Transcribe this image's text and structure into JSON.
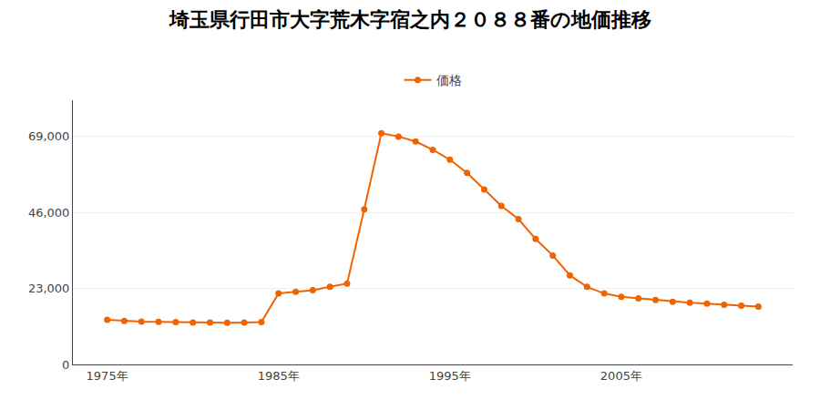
{
  "chart_data": {
    "type": "line",
    "title": "埼玉県行田市大字荒木字宿之内２０８８番の地価推移",
    "x": [
      1975,
      1976,
      1977,
      1978,
      1979,
      1980,
      1981,
      1982,
      1983,
      1984,
      1985,
      1986,
      1987,
      1988,
      1989,
      1990,
      1991,
      1992,
      1993,
      1994,
      1995,
      1996,
      1997,
      1998,
      1999,
      2000,
      2001,
      2002,
      2003,
      2004,
      2005,
      2006,
      2007,
      2008,
      2009,
      2010,
      2011,
      2012,
      2013
    ],
    "series": [
      {
        "name": "価格",
        "color": "#f06400",
        "marker": "circle",
        "line_style": "solid",
        "values": [
          13500,
          13200,
          13000,
          12900,
          12800,
          12700,
          12700,
          12600,
          12700,
          12800,
          21500,
          22000,
          22500,
          23500,
          24500,
          47000,
          70000,
          69000,
          67500,
          65000,
          62000,
          58000,
          53000,
          48000,
          44000,
          38000,
          33000,
          27000,
          23500,
          21500,
          20500,
          20000,
          19500,
          19000,
          18700,
          18400,
          18100,
          17800,
          17500
        ]
      }
    ],
    "xlim": [
      1973,
      2015
    ],
    "xticks": [
      {
        "value": 1975,
        "label": "1975年"
      },
      {
        "value": 1985,
        "label": "1985年"
      },
      {
        "value": 1995,
        "label": "1995年"
      },
      {
        "value": 2005,
        "label": "2005年"
      }
    ],
    "ylim": [
      0,
      80000
    ],
    "yticks": [
      0,
      {
        "value": 23000,
        "label": "23,000"
      },
      {
        "value": 46000,
        "label": "46,000"
      },
      {
        "value": 69000,
        "label": "69,000"
      }
    ],
    "grid": "y",
    "legend": "top"
  }
}
